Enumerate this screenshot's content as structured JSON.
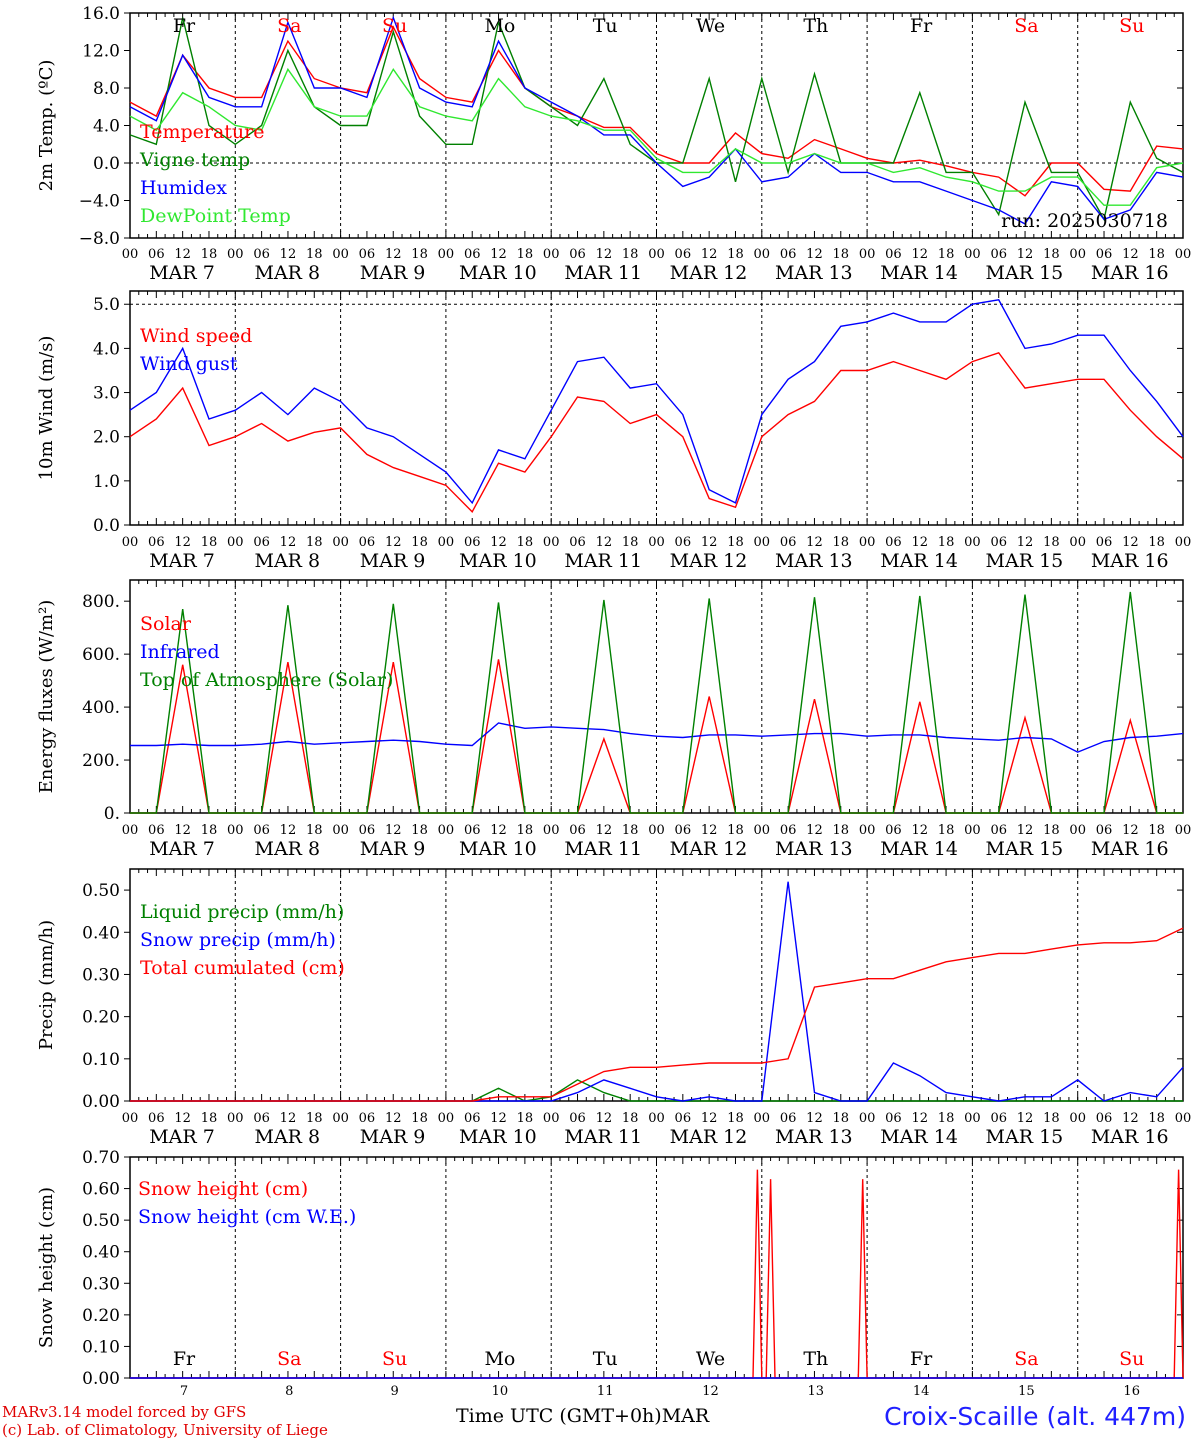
{
  "days": [
    "Fr",
    "Sa",
    "Su",
    "Mo",
    "Tu",
    "We",
    "Th",
    "Fr",
    "Sa",
    "Su"
  ],
  "day_colors": [
    "#000000",
    "#ff0000",
    "#ff0000",
    "#000000",
    "#000000",
    "#000000",
    "#000000",
    "#000000",
    "#ff0000",
    "#ff0000"
  ],
  "dates": [
    "MAR  7",
    "MAR  8",
    "MAR  9",
    "MAR 10",
    "MAR 11",
    "MAR 12",
    "MAR 13",
    "MAR 14",
    "MAR 15",
    "MAR 16"
  ],
  "date_numbers": [
    "7",
    "8",
    "9",
    "10",
    "11",
    "12",
    "13",
    "14",
    "15",
    "16"
  ],
  "hour_ticks": [
    "00",
    "06",
    "12",
    "18"
  ],
  "run_label": "run: 2025030718",
  "x_axis_title": "Time UTC (GMT+0h)MAR",
  "station_label": "Croix-Scaille (alt. 447m)",
  "footer": [
    "MARv3.14 model forced by GFS",
    "(c) Lab. of Climatology, University of Liege"
  ],
  "chart_data": [
    {
      "type": "line",
      "ylabel": "2m Temp. (ºC)",
      "ylim": [
        -8,
        16
      ],
      "yticks": [
        "16.0",
        "12.0",
        "8.0",
        "4.0",
        "0.0",
        "−4.0",
        "−8.0"
      ],
      "ytick_values": [
        16,
        12,
        8,
        4,
        0,
        -4,
        -8
      ],
      "dashed_y": 0,
      "legend": [
        "Temperature",
        "Vigne temp",
        "Humidex",
        "DewPoint Temp"
      ],
      "x_hours": [
        0,
        6,
        12,
        18,
        24,
        30,
        36,
        42,
        48,
        54,
        60,
        66,
        72,
        78,
        84,
        90,
        96,
        102,
        108,
        114,
        120,
        126,
        132,
        138,
        144,
        150,
        156,
        162,
        168,
        174,
        180,
        186,
        192,
        198,
        204,
        210,
        216,
        222,
        228,
        234,
        240
      ],
      "series": [
        {
          "name": "Temperature",
          "color": "#ff0000",
          "values": [
            6.5,
            5,
            11.5,
            8,
            7,
            7,
            13,
            9,
            8,
            7.5,
            14.5,
            9,
            7,
            6.5,
            12,
            8,
            6,
            5,
            3.8,
            3.8,
            1,
            0,
            0,
            3.2,
            1,
            0.5,
            2.5,
            1.5,
            0.5,
            0,
            0.3,
            -0.3,
            -1,
            -1.5,
            -3.5,
            0,
            0,
            -2.8,
            -3,
            1.8,
            1.5
          ]
        },
        {
          "name": "Vigne temp",
          "color": "#008000",
          "values": [
            3,
            2,
            15.5,
            4,
            2,
            4,
            12,
            6,
            4,
            4,
            14,
            5,
            2,
            2,
            15,
            8,
            6,
            4,
            9,
            2,
            0,
            0,
            9,
            -2,
            9,
            -1,
            9.5,
            0,
            0,
            0,
            7.5,
            -1,
            -1,
            -5.5,
            6.5,
            -1,
            -1,
            -6,
            6.5,
            0.5,
            -1
          ]
        },
        {
          "name": "Humidex",
          "color": "#0000ff",
          "values": [
            6,
            4.5,
            11.5,
            7,
            6,
            6,
            15,
            8,
            8,
            7,
            15.5,
            8,
            6.5,
            6,
            13,
            8,
            6.5,
            5,
            3,
            3,
            0,
            -2.5,
            -1.5,
            1.5,
            -2,
            -1.5,
            1,
            -1,
            -1,
            -2,
            -2,
            -3,
            -4,
            -5,
            -6.5,
            -2,
            -2.5,
            -6,
            -5,
            -1,
            -1.5
          ]
        },
        {
          "name": "DewPoint Temp",
          "color": "#30e830",
          "values": [
            5,
            3.5,
            7.5,
            6,
            4,
            3.5,
            10,
            6,
            5,
            5,
            10,
            6,
            5,
            4.5,
            9,
            6,
            5,
            4.5,
            3.5,
            3.5,
            0.5,
            -1,
            -1,
            1.5,
            0,
            0,
            1,
            0,
            0,
            -1,
            -0.5,
            -1.5,
            -2,
            -3,
            -3,
            -1.5,
            -1.5,
            -4.5,
            -4.5,
            -0.5,
            0
          ]
        }
      ]
    },
    {
      "type": "line",
      "ylabel": "10m Wind (m/s)",
      "ylim": [
        0,
        5.3
      ],
      "yticks": [
        "5.0",
        "4.0",
        "3.0",
        "2.0",
        "1.0",
        "0.0"
      ],
      "ytick_values": [
        5,
        4,
        3,
        2,
        1,
        0
      ],
      "dashed_y": 5,
      "legend": [
        "Wind speed",
        "Wind gust"
      ],
      "x_hours": [
        0,
        6,
        12,
        18,
        24,
        30,
        36,
        42,
        48,
        54,
        60,
        66,
        72,
        78,
        84,
        90,
        96,
        102,
        108,
        114,
        120,
        126,
        132,
        138,
        144,
        150,
        156,
        162,
        168,
        174,
        180,
        186,
        192,
        198,
        204,
        210,
        216,
        222,
        228,
        234,
        240
      ],
      "series": [
        {
          "name": "Wind speed",
          "color": "#ff0000",
          "values": [
            2,
            2.4,
            3.1,
            1.8,
            2,
            2.3,
            1.9,
            2.1,
            2.2,
            1.6,
            1.3,
            1.1,
            0.9,
            0.3,
            1.4,
            1.2,
            2,
            2.9,
            2.8,
            2.3,
            2.5,
            2,
            0.6,
            0.4,
            2,
            2.5,
            2.8,
            3.5,
            3.5,
            3.7,
            3.5,
            3.3,
            3.7,
            3.9,
            3.1,
            3.2,
            3.3,
            3.3,
            2.6,
            2,
            1.5
          ]
        },
        {
          "name": "Wind gust",
          "color": "#0000ff",
          "values": [
            2.6,
            3,
            4,
            2.4,
            2.6,
            3,
            2.5,
            3.1,
            2.8,
            2.2,
            2,
            1.6,
            1.2,
            0.5,
            1.7,
            1.5,
            2.6,
            3.7,
            3.8,
            3.1,
            3.2,
            2.5,
            0.8,
            0.5,
            2.5,
            3.3,
            3.7,
            4.5,
            4.6,
            4.8,
            4.6,
            4.6,
            5,
            5.1,
            4,
            4.1,
            4.3,
            4.3,
            3.5,
            2.8,
            2
          ]
        }
      ]
    },
    {
      "type": "line",
      "ylabel": "Energy fluxes (W/m²)",
      "ylim": [
        0,
        880
      ],
      "yticks": [
        "800.",
        "600.",
        "400.",
        "200.",
        "0."
      ],
      "ytick_values": [
        800,
        600,
        400,
        200,
        0
      ],
      "legend": [
        "Solar",
        "Infrared",
        "Top of Atmosphere (Solar)"
      ],
      "x_hours": [
        0,
        6,
        12,
        18,
        24,
        30,
        36,
        42,
        48,
        54,
        60,
        66,
        72,
        78,
        84,
        90,
        96,
        102,
        108,
        114,
        120,
        126,
        132,
        138,
        144,
        150,
        156,
        162,
        168,
        174,
        180,
        186,
        192,
        198,
        204,
        210,
        216,
        222,
        228,
        234,
        240
      ],
      "series": [
        {
          "name": "Solar",
          "color": "#ff0000",
          "values": [
            0,
            0,
            560,
            0,
            0,
            0,
            570,
            0,
            0,
            0,
            570,
            0,
            0,
            0,
            580,
            0,
            0,
            0,
            280,
            0,
            0,
            0,
            440,
            0,
            0,
            0,
            430,
            0,
            0,
            0,
            420,
            0,
            0,
            0,
            360,
            0,
            0,
            0,
            350,
            0,
            0
          ]
        },
        {
          "name": "Infrared",
          "color": "#0000ff",
          "values": [
            255,
            255,
            260,
            255,
            255,
            260,
            270,
            260,
            265,
            270,
            275,
            270,
            260,
            255,
            340,
            320,
            325,
            320,
            315,
            300,
            290,
            285,
            295,
            295,
            290,
            295,
            300,
            300,
            290,
            295,
            295,
            285,
            280,
            275,
            285,
            280,
            230,
            270,
            285,
            290,
            300
          ]
        },
        {
          "name": "Top of Atmosphere (Solar)",
          "color": "#008000",
          "values": [
            0,
            0,
            770,
            0,
            0,
            0,
            785,
            0,
            0,
            0,
            790,
            0,
            0,
            0,
            795,
            0,
            0,
            0,
            805,
            0,
            0,
            0,
            810,
            0,
            0,
            0,
            815,
            0,
            0,
            0,
            820,
            0,
            0,
            0,
            825,
            0,
            0,
            0,
            835,
            0,
            0
          ]
        }
      ]
    },
    {
      "type": "line",
      "ylabel": "Precip (mm/h)",
      "ylim": [
        0,
        0.55
      ],
      "yticks": [
        "0.50",
        "0.40",
        "0.30",
        "0.20",
        "0.10",
        "0.00"
      ],
      "ytick_values": [
        0.5,
        0.4,
        0.3,
        0.2,
        0.1,
        0
      ],
      "legend": [
        "Liquid precip (mm/h)",
        "Snow precip (mm/h)",
        "Total cumulated (cm)"
      ],
      "x_hours": [
        0,
        6,
        12,
        18,
        24,
        30,
        36,
        42,
        48,
        54,
        60,
        66,
        72,
        78,
        84,
        90,
        96,
        102,
        108,
        114,
        120,
        126,
        132,
        138,
        144,
        150,
        156,
        162,
        168,
        174,
        180,
        186,
        192,
        198,
        204,
        210,
        216,
        222,
        228,
        234,
        240
      ],
      "series": [
        {
          "name": "Liquid precip (mm/h)",
          "color": "#008000",
          "values": [
            0,
            0,
            0,
            0,
            0,
            0,
            0,
            0,
            0,
            0,
            0,
            0,
            0,
            0,
            0.03,
            0,
            0.01,
            0.05,
            0.02,
            0,
            0,
            0,
            0,
            0,
            0,
            0,
            0,
            0,
            0,
            0,
            0,
            0,
            0,
            0,
            0,
            0,
            0,
            0,
            0,
            0,
            0
          ]
        },
        {
          "name": "Snow precip (mm/h)",
          "color": "#0000ff",
          "values": [
            0,
            0,
            0,
            0,
            0,
            0,
            0,
            0,
            0,
            0,
            0,
            0,
            0,
            0,
            0,
            0,
            0,
            0.02,
            0.05,
            0.03,
            0.01,
            0,
            0.01,
            0,
            0,
            0.52,
            0.02,
            0,
            0,
            0.09,
            0.06,
            0.02,
            0.01,
            0,
            0.01,
            0.01,
            0.05,
            0,
            0.02,
            0.01,
            0.08
          ]
        },
        {
          "name": "Total cumulated (cm)",
          "color": "#ff0000",
          "values": [
            0,
            0,
            0,
            0,
            0,
            0,
            0,
            0,
            0,
            0,
            0,
            0,
            0,
            0,
            0.01,
            0.01,
            0.01,
            0.04,
            0.07,
            0.08,
            0.08,
            0.085,
            0.09,
            0.09,
            0.09,
            0.1,
            0.27,
            0.28,
            0.29,
            0.29,
            0.31,
            0.33,
            0.34,
            0.35,
            0.35,
            0.36,
            0.37,
            0.375,
            0.375,
            0.38,
            0.41
          ]
        }
      ]
    },
    {
      "type": "line",
      "ylabel": "Snow height (cm)",
      "ylim": [
        0,
        0.7
      ],
      "yticks": [
        "0.70",
        "0.60",
        "0.50",
        "0.40",
        "0.30",
        "0.20",
        "0.10",
        "0.00"
      ],
      "ytick_values": [
        0.7,
        0.6,
        0.5,
        0.4,
        0.3,
        0.2,
        0.1,
        0
      ],
      "legend": [
        "Snow height (cm)",
        "Snow height (cm W.E.)"
      ],
      "x_hours": [
        0,
        142,
        143,
        144,
        145,
        146,
        147,
        148,
        166,
        167,
        168,
        238,
        239,
        240
      ],
      "series": [
        {
          "name": "Snow height (cm)",
          "color": "#ff0000",
          "values": [
            0,
            0,
            0.66,
            0,
            0,
            0.63,
            0,
            0,
            0,
            0.63,
            0,
            0,
            0.66,
            0
          ]
        },
        {
          "name": "Snow height (cm W.E.)",
          "color": "#0000ff",
          "values": [
            0,
            0,
            0,
            0,
            0,
            0,
            0,
            0,
            0,
            0,
            0,
            0,
            0,
            0
          ]
        }
      ]
    }
  ]
}
